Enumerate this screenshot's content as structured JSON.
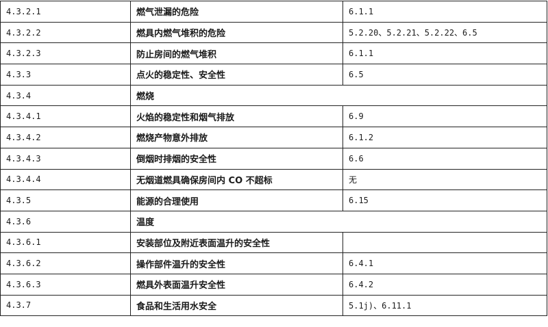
{
  "rows": [
    {
      "clause": "4.3.2.1",
      "item": "燃气泄漏的危险",
      "ref": "6.1.1"
    },
    {
      "clause": "4.3.2.2",
      "item": "燃具内燃气堆积的危险",
      "ref": "5.2.20、5.2.21、5.2.22、6.5"
    },
    {
      "clause": "4.3.2.3",
      "item": "防止房间的燃气堆积",
      "ref": "6.1.1"
    },
    {
      "clause": "4.3.3",
      "item": "点火的稳定性、安全性",
      "ref": "6.5"
    },
    {
      "clause": "4.3.4",
      "item": "燃烧",
      "span": true
    },
    {
      "clause": "4.3.4.1",
      "item": "火焰的稳定性和烟气排放",
      "ref": "6.9"
    },
    {
      "clause": "4.3.4.2",
      "item": "燃烧产物意外排放",
      "ref": "6.1.2"
    },
    {
      "clause": "4.3.4.3",
      "item": "倒烟时排烟的安全性",
      "ref": "6.6"
    },
    {
      "clause": "4.3.4.4",
      "item": "无烟道燃具确保房间内 CO 不超标",
      "ref": "无"
    },
    {
      "clause": "4.3.5",
      "item": "能源的合理使用",
      "ref": "6.15"
    },
    {
      "clause": "4.3.6",
      "item": "温度",
      "span": true
    },
    {
      "clause": "4.3.6.1",
      "item": "安装部位及附近表面温升的安全性",
      "ref": ""
    },
    {
      "clause": "4.3.6.2",
      "item": "操作部件温升的安全性",
      "ref": "6.4.1"
    },
    {
      "clause": "4.3.6.3",
      "item": "燃具外表面温升安全性",
      "ref": "6.4.2"
    },
    {
      "clause": "4.3.7",
      "item": "食品和生活用水安全",
      "ref": "5.1j)、6.11.1"
    }
  ]
}
